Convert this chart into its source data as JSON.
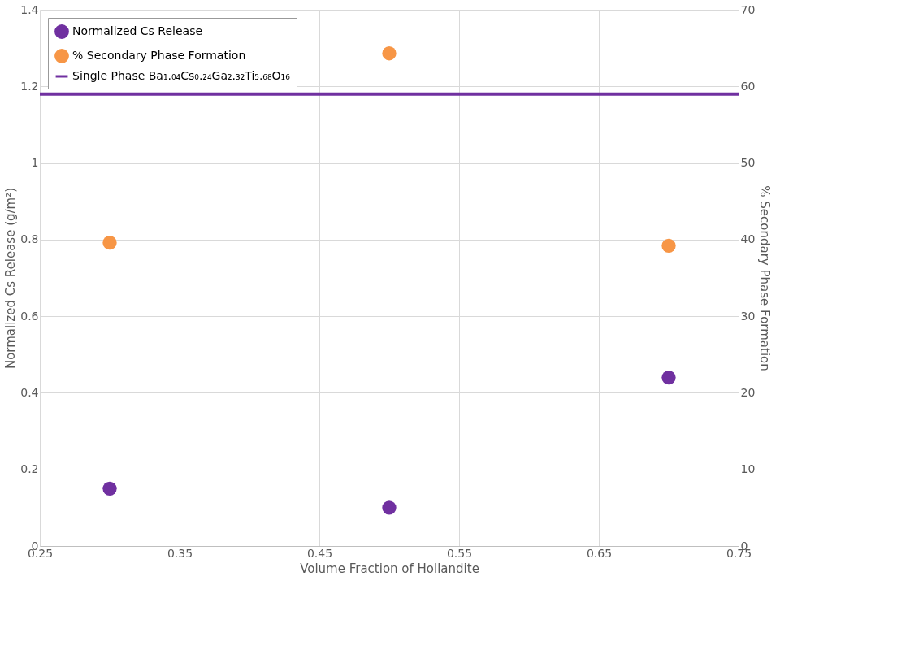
{
  "chart_data": {
    "type": "scatter",
    "xlabel": "Volume Fraction of Hollandite",
    "ylabel": "Normalized Cs Release (g/m²)",
    "y2label": "% Secondary Phase Formation",
    "x": [
      0.3,
      0.5,
      0.7
    ],
    "series": [
      {
        "name": "Normalized Cs Release",
        "color": "#7030a0",
        "values": [
          0.15,
          0.1,
          0.44
        ]
      },
      {
        "name": "% Secondary Phase Formation",
        "color": "#f79646",
        "values": [
          39.6,
          64.3,
          39.2
        ],
        "axis": "y2"
      }
    ],
    "ref_lines": [
      {
        "axis": "y",
        "value": 1.18,
        "label": "Single Phase Ba₁.₀₄Cs₀.₂₄Ga₂.₃₂Ti₅.₆₈O₁₆",
        "color": "#7030a0",
        "line_style": "solid"
      }
    ],
    "xlim": [
      0.25,
      0.75
    ],
    "xticks": [
      0.25,
      0.35,
      0.45,
      0.55,
      0.65,
      0.75
    ],
    "ylim": [
      0,
      1.4
    ],
    "yticks": [
      0,
      0.2,
      0.4,
      0.6,
      0.8,
      1,
      1.2,
      1.4
    ],
    "y2lim": [
      0,
      70
    ],
    "y2ticks": [
      0,
      10,
      20,
      30,
      40,
      50,
      60,
      70
    ],
    "grid": true,
    "legend": "top left",
    "marker": "circle"
  }
}
